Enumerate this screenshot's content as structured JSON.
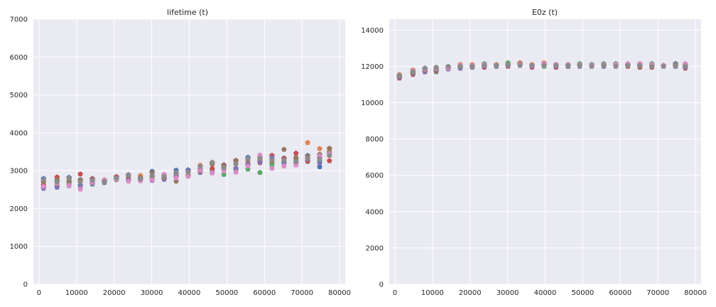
{
  "palette": [
    "#4c72b0",
    "#dd8452",
    "#55a868",
    "#c44e52",
    "#8172b3",
    "#937860",
    "#da8bc3",
    "#8c8c8c"
  ],
  "chart_data": [
    {
      "type": "scatter",
      "title": "lifetime (t)",
      "xlim": [
        -1500,
        81500
      ],
      "ylim": [
        0,
        7000
      ],
      "xticks": [
        0,
        10000,
        20000,
        30000,
        40000,
        50000,
        60000,
        70000,
        80000
      ],
      "yticks": [
        0,
        1000,
        2000,
        3000,
        4000,
        5000,
        6000,
        7000
      ],
      "x": [
        1200,
        4800,
        8000,
        11000,
        14200,
        17400,
        20600,
        23800,
        27000,
        30100,
        33300,
        36500,
        39700,
        42900,
        46100,
        49200,
        52400,
        55600,
        58800,
        62000,
        65200,
        68400,
        71500,
        74700,
        77300
      ],
      "series": [
        {
          "values": [
            2790,
            2740,
            2820,
            2760,
            2790,
            2750,
            2820,
            2890,
            2810,
            2980,
            2880,
            3010,
            3020,
            3100,
            3200,
            3150,
            3250,
            3350,
            3280,
            3400,
            3330,
            3300,
            3400,
            3100,
            3480
          ]
        },
        {
          "values": [
            2690,
            2620,
            2650,
            2720,
            2700,
            2720,
            2780,
            2790,
            2870,
            2790,
            2860,
            2920,
            2950,
            3140,
            3160,
            3100,
            3180,
            3250,
            3270,
            3200,
            3280,
            3310,
            3740,
            3580,
            3550
          ]
        },
        {
          "values": [
            2550,
            2570,
            2680,
            2590,
            2640,
            2680,
            2760,
            2770,
            2760,
            2830,
            2800,
            2850,
            2870,
            2990,
            3000,
            2900,
            3010,
            3040,
            2950,
            3150,
            3230,
            3300,
            3240,
            3250,
            3450
          ]
        },
        {
          "values": [
            2620,
            2830,
            2780,
            2910,
            2780,
            2730,
            2840,
            2850,
            2740,
            2860,
            2790,
            2830,
            2860,
            3030,
            3050,
            3140,
            3270,
            3150,
            3210,
            3400,
            3320,
            3460,
            3250,
            3340,
            3260
          ]
        },
        {
          "values": [
            2530,
            2560,
            2600,
            2620,
            2660,
            2690,
            2800,
            2740,
            2750,
            2740,
            2770,
            2900,
            2990,
            2950,
            2940,
            3050,
            3060,
            3180,
            3230,
            3350,
            3190,
            3200,
            3300,
            3200,
            3400
          ]
        },
        {
          "values": [
            2710,
            2760,
            2720,
            2750,
            2730,
            2720,
            2760,
            2890,
            2810,
            2940,
            2820,
            2720,
            2870,
            2990,
            3180,
            3120,
            3260,
            3300,
            3350,
            3260,
            3560,
            3340,
            3380,
            3430,
            3590
          ]
        },
        {
          "values": [
            2580,
            2670,
            2610,
            2510,
            2690,
            2760,
            2780,
            2720,
            2730,
            2760,
            2900,
            2810,
            2850,
            3010,
            2940,
            2990,
            2960,
            3120,
            3410,
            3060,
            3120,
            3150,
            3320,
            3390,
            3440
          ]
        },
        {
          "values": [
            2760,
            2700,
            2800,
            2700,
            2750,
            2710,
            2810,
            2880,
            2780,
            2870,
            2840,
            2950,
            2960,
            3110,
            3220,
            3080,
            3170,
            3320,
            3320,
            3290,
            3280,
            3240,
            3320,
            3310,
            3400
          ]
        }
      ]
    },
    {
      "type": "scatter",
      "title": "E0z (t)",
      "xlim": [
        -1500,
        81500
      ],
      "ylim": [
        0,
        14600
      ],
      "xticks": [
        0,
        10000,
        20000,
        30000,
        40000,
        50000,
        60000,
        70000,
        80000
      ],
      "yticks": [
        0,
        2000,
        4000,
        6000,
        8000,
        10000,
        12000,
        14000
      ],
      "x": [
        1200,
        4800,
        8000,
        11000,
        14200,
        17400,
        20600,
        23800,
        27000,
        30100,
        33300,
        36500,
        39700,
        42900,
        46100,
        49200,
        52400,
        55600,
        58800,
        62000,
        65200,
        68400,
        71500,
        74700,
        77300
      ],
      "series": [
        {
          "values": [
            11450,
            11650,
            11900,
            11800,
            11900,
            11950,
            12000,
            12000,
            12050,
            12050,
            12100,
            12000,
            12100,
            12100,
            12050,
            12050,
            12100,
            12050,
            12050,
            12050,
            12100,
            12050,
            12000,
            12150,
            12000
          ]
        },
        {
          "values": [
            11550,
            11800,
            11850,
            11900,
            11950,
            12100,
            12100,
            12100,
            12100,
            12100,
            12200,
            12100,
            12200,
            12100,
            12100,
            12100,
            12100,
            12050,
            12100,
            12100,
            12100,
            12050,
            12050,
            12100,
            12100
          ]
        },
        {
          "values": [
            11400,
            11700,
            11750,
            11700,
            11850,
            11950,
            11950,
            12150,
            12050,
            12200,
            12100,
            12050,
            12000,
            12050,
            12000,
            12150,
            12100,
            12150,
            12150,
            12000,
            12050,
            12150,
            12050,
            12050,
            12050
          ]
        },
        {
          "values": [
            11350,
            11550,
            11700,
            11750,
            11850,
            11900,
            11950,
            11950,
            12000,
            12000,
            12100,
            11950,
            12050,
            11950,
            12000,
            12050,
            12000,
            12000,
            12000,
            12000,
            11950,
            11950,
            12050,
            12000,
            11900
          ]
        },
        {
          "values": [
            11400,
            11600,
            11700,
            11800,
            11850,
            11900,
            11950,
            12000,
            12000,
            12050,
            12050,
            12000,
            12050,
            12000,
            12000,
            12000,
            12050,
            12000,
            12050,
            12050,
            12000,
            12000,
            12050,
            12000,
            11950
          ]
        },
        {
          "values": [
            11450,
            11650,
            11800,
            11850,
            11950,
            12000,
            12050,
            12050,
            12050,
            12100,
            12150,
            12050,
            12100,
            12050,
            12050,
            12050,
            12050,
            12050,
            12050,
            12050,
            12000,
            12100,
            12000,
            12100,
            12050
          ]
        },
        {
          "values": [
            11500,
            11750,
            11850,
            11900,
            11900,
            12050,
            12050,
            12100,
            12050,
            12100,
            12100,
            12050,
            12150,
            12100,
            12100,
            12100,
            12050,
            12100,
            12100,
            12150,
            12150,
            12100,
            12050,
            12050,
            12150
          ]
        },
        {
          "values": [
            11500,
            11700,
            11900,
            11950,
            12000,
            12000,
            12000,
            12050,
            12050,
            12100,
            12050,
            12050,
            12050,
            12050,
            12050,
            12050,
            12000,
            12050,
            12000,
            12050,
            12050,
            12000,
            12000,
            12050,
            12000
          ]
        }
      ]
    }
  ]
}
